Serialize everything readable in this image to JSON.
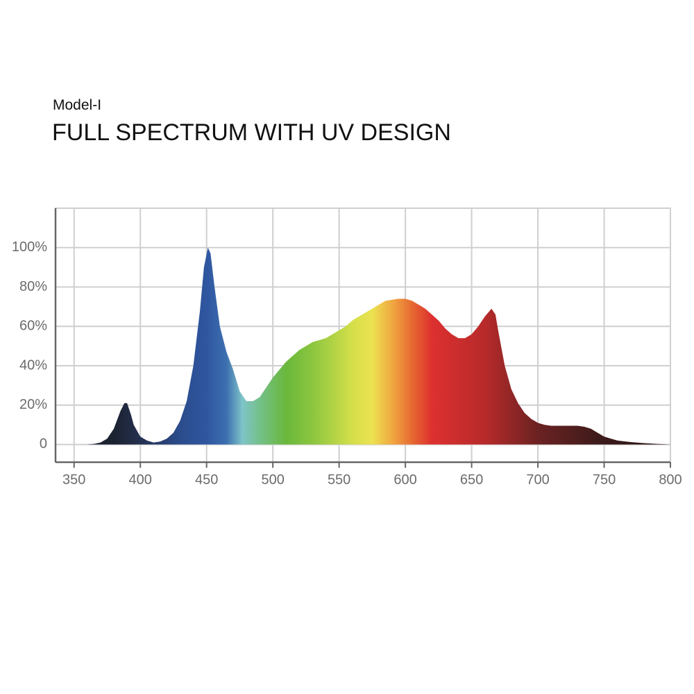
{
  "chart_data": {
    "type": "area",
    "subtitle": "Model-I",
    "title": "FULL SPECTRUM WITH UV DESIGN",
    "x": [
      350,
      355,
      360,
      365,
      370,
      375,
      380,
      385,
      388,
      390,
      393,
      395,
      400,
      405,
      410,
      415,
      420,
      425,
      430,
      435,
      440,
      445,
      448,
      451,
      453,
      456,
      460,
      465,
      470,
      475,
      480,
      485,
      490,
      495,
      500,
      505,
      510,
      515,
      520,
      525,
      530,
      535,
      540,
      545,
      550,
      555,
      560,
      565,
      570,
      575,
      580,
      585,
      590,
      595,
      600,
      605,
      610,
      615,
      620,
      625,
      630,
      635,
      640,
      645,
      650,
      655,
      660,
      665,
      668,
      670,
      675,
      680,
      685,
      690,
      695,
      700,
      705,
      710,
      715,
      720,
      725,
      730,
      735,
      740,
      745,
      750,
      755,
      760,
      770,
      780,
      790,
      800
    ],
    "values": [
      0,
      0,
      0,
      0.3,
      1,
      3,
      8,
      17,
      21,
      21,
      15,
      10,
      4,
      2,
      1,
      1.5,
      3,
      6,
      12,
      22,
      40,
      68,
      90,
      100,
      97,
      80,
      60,
      47,
      38,
      27,
      22,
      22,
      24,
      29,
      34,
      38,
      42,
      45,
      48,
      50,
      52,
      53,
      54,
      56,
      58,
      60,
      63,
      65,
      67,
      69,
      71,
      73,
      73.5,
      74,
      74,
      73,
      71,
      69,
      66,
      63,
      59,
      56,
      54,
      54,
      56,
      60,
      65,
      69,
      66,
      58,
      40,
      28,
      21,
      16,
      13,
      11,
      10,
      9.5,
      9.5,
      9.5,
      9.5,
      9.5,
      9,
      8,
      6,
      4,
      3,
      2,
      1.2,
      0.7,
      0.3,
      0
    ],
    "color_stops": [
      {
        "x": 380,
        "color": "#1b2230"
      },
      {
        "x": 400,
        "color": "#25304f"
      },
      {
        "x": 430,
        "color": "#2b4c8c"
      },
      {
        "x": 450,
        "color": "#2f56a0"
      },
      {
        "x": 465,
        "color": "#3d6fb0"
      },
      {
        "x": 477,
        "color": "#7fc4c8"
      },
      {
        "x": 490,
        "color": "#74c08a"
      },
      {
        "x": 510,
        "color": "#6ab83c"
      },
      {
        "x": 530,
        "color": "#8cc63f"
      },
      {
        "x": 560,
        "color": "#d4df4a"
      },
      {
        "x": 575,
        "color": "#ece250"
      },
      {
        "x": 592,
        "color": "#f0a040"
      },
      {
        "x": 605,
        "color": "#e66a30"
      },
      {
        "x": 620,
        "color": "#dd3030"
      },
      {
        "x": 660,
        "color": "#b82a2a"
      },
      {
        "x": 700,
        "color": "#6b2222"
      },
      {
        "x": 750,
        "color": "#3a1a1a"
      },
      {
        "x": 800,
        "color": "#2a1515"
      }
    ],
    "xlim": [
      336,
      800
    ],
    "ylim": [
      -9,
      120
    ],
    "xticks": [
      350,
      400,
      450,
      500,
      550,
      600,
      650,
      700,
      750,
      800
    ],
    "yticks": [
      0,
      {
        "value": 20,
        "label": "20%"
      },
      {
        "value": 40,
        "label": "40%"
      },
      {
        "value": 60,
        "label": "60%"
      },
      {
        "value": 80,
        "label": "80%"
      },
      {
        "value": 100,
        "label": "100%"
      }
    ],
    "grid": true
  }
}
